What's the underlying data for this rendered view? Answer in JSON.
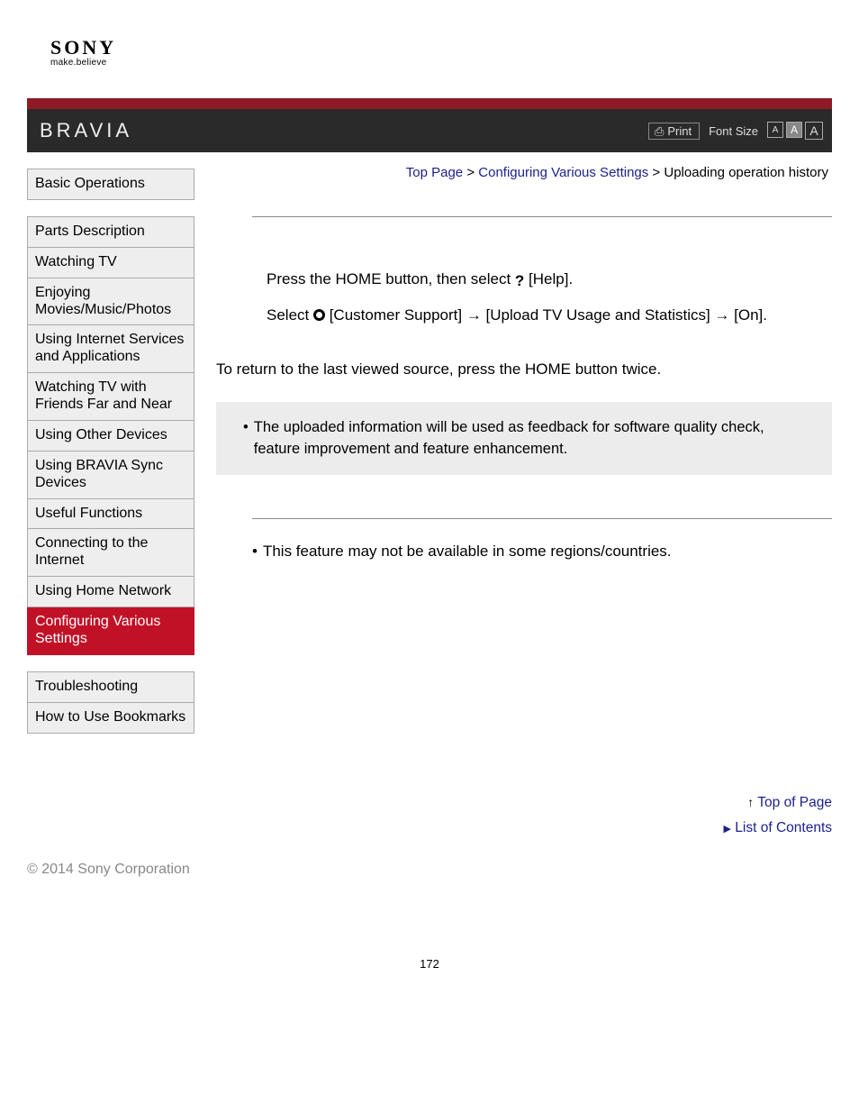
{
  "brand": {
    "name": "SONY",
    "tagline": "make.believe",
    "product": "BRAVIA"
  },
  "colors": {
    "accent_red_strip": "#8d1a25",
    "accent_red_active": "#c01127",
    "header_bg": "#2a2a2a",
    "link": "#1a1f8a",
    "sidebar_bg": "#eeeeee",
    "sidebar_border": "#aaaaaa",
    "infobox_bg": "#ececec",
    "muted_text": "#888888"
  },
  "header": {
    "print_label": "Print",
    "font_size_label": "Font Size",
    "font_buttons": [
      "A",
      "A",
      "A"
    ]
  },
  "breadcrumb": {
    "top": "Top Page",
    "mid": "Configuring Various Settings",
    "current": "Uploading operation history",
    "sep": " > "
  },
  "sidebar": {
    "groups": [
      {
        "items": [
          {
            "label": "Basic Operations",
            "active": false
          }
        ]
      },
      {
        "items": [
          {
            "label": "Parts Description",
            "active": false
          },
          {
            "label": "Watching TV",
            "active": false
          },
          {
            "label": "Enjoying Movies/Music/Photos",
            "active": false
          },
          {
            "label": "Using Internet Services and Applications",
            "active": false
          },
          {
            "label": "Watching TV with Friends Far and Near",
            "active": false
          },
          {
            "label": "Using Other Devices",
            "active": false
          },
          {
            "label": "Using BRAVIA Sync Devices",
            "active": false
          },
          {
            "label": "Useful Functions",
            "active": false
          },
          {
            "label": "Connecting to the Internet",
            "active": false
          },
          {
            "label": "Using Home Network",
            "active": false
          },
          {
            "label": "Configuring Various Settings",
            "active": true
          }
        ]
      },
      {
        "items": [
          {
            "label": "Troubleshooting",
            "active": false
          },
          {
            "label": "How to Use Bookmarks",
            "active": false
          }
        ]
      }
    ]
  },
  "content": {
    "step1_pre": "Press the HOME button, then select ",
    "step1_post": " [Help].",
    "step2_pre": "Select ",
    "step2_post": " [Customer Support] → [Upload TV Usage and Statistics] → [On].",
    "return_note": "To return to the last viewed source, press the HOME button twice.",
    "info_bullet": "The uploaded information will be used as feedback for software quality check, feature improvement and feature enhancement.",
    "note_bullet": "This feature may not be available in some regions/countries."
  },
  "footer": {
    "top_of_page": "Top of Page",
    "list_of_contents": "List of Contents",
    "copyright": "© 2014 Sony Corporation",
    "page_number": "172"
  }
}
